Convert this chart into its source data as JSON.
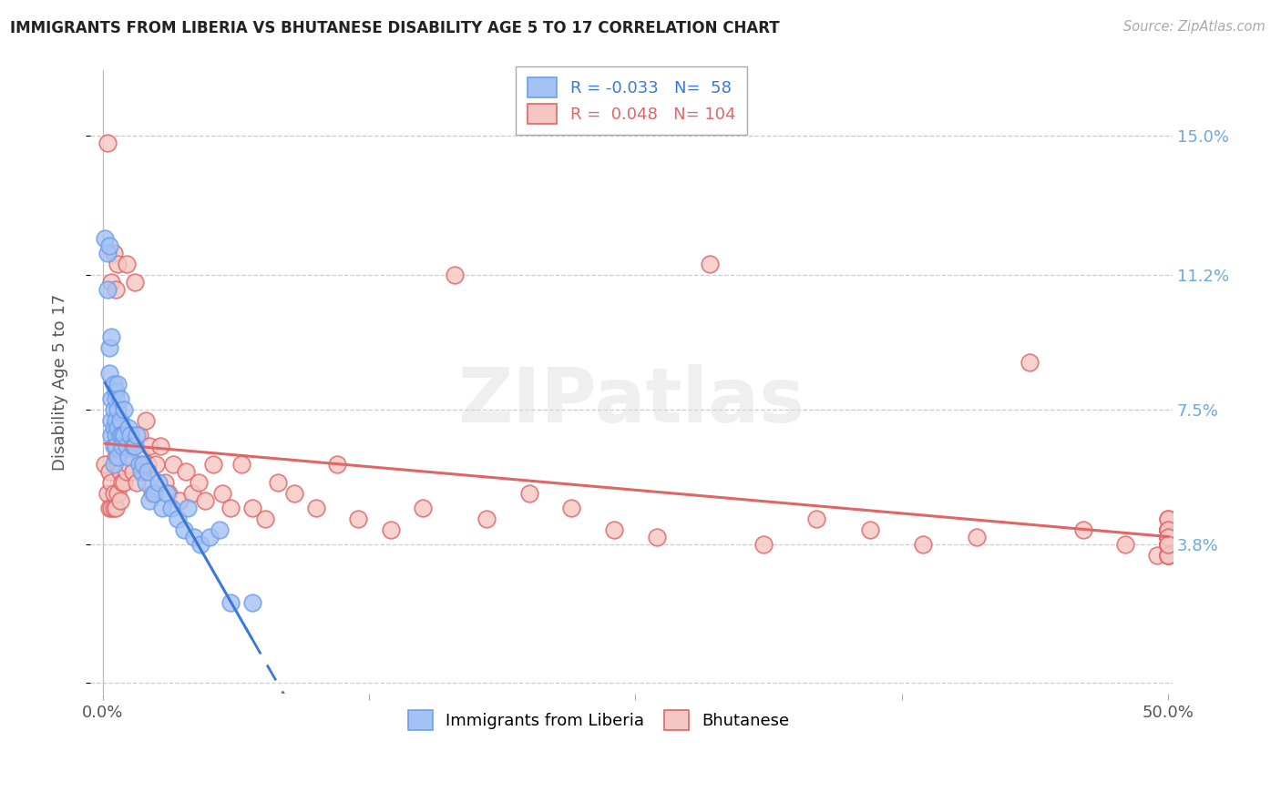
{
  "title": "IMMIGRANTS FROM LIBERIA VS BHUTANESE DISABILITY AGE 5 TO 17 CORRELATION CHART",
  "source": "Source: ZipAtlas.com",
  "ylabel": "Disability Age 5 to 17",
  "xlim": [
    -0.006,
    0.502
  ],
  "ylim": [
    -0.003,
    0.168
  ],
  "ytick_vals": [
    0.0,
    0.038,
    0.075,
    0.112,
    0.15
  ],
  "ytick_labels": [
    "",
    "3.8%",
    "7.5%",
    "11.2%",
    "15.0%"
  ],
  "xtick_vals": [
    0.0,
    0.125,
    0.25,
    0.375,
    0.5
  ],
  "xtick_labels": [
    "0.0%",
    "",
    "",
    "",
    "50.0%"
  ],
  "liberia_R": -0.033,
  "liberia_N": 58,
  "bhutanese_R": 0.048,
  "bhutanese_N": 104,
  "liberia_color": "#a4c2f4",
  "bhutanese_color": "#f4c7c3",
  "liberia_edge_color": "#6d9eeb",
  "bhutanese_edge_color": "#e06666",
  "liberia_line_color": "#3c78d8",
  "bhutanese_line_color": "#e06666",
  "watermark": "ZIPatlas",
  "bg_color": "#ffffff",
  "grid_color": "#cccccc",
  "right_axis_color": "#6fa8dc",
  "liberia_x": [
    0.001,
    0.002,
    0.002,
    0.003,
    0.003,
    0.003,
    0.004,
    0.004,
    0.004,
    0.004,
    0.005,
    0.005,
    0.005,
    0.005,
    0.005,
    0.006,
    0.006,
    0.006,
    0.006,
    0.006,
    0.007,
    0.007,
    0.007,
    0.007,
    0.008,
    0.008,
    0.008,
    0.009,
    0.009,
    0.01,
    0.01,
    0.011,
    0.012,
    0.012,
    0.013,
    0.014,
    0.015,
    0.016,
    0.017,
    0.018,
    0.019,
    0.02,
    0.021,
    0.022,
    0.024,
    0.026,
    0.028,
    0.03,
    0.032,
    0.035,
    0.038,
    0.04,
    0.043,
    0.046,
    0.05,
    0.055,
    0.06,
    0.07
  ],
  "liberia_y": [
    0.122,
    0.118,
    0.108,
    0.092,
    0.085,
    0.12,
    0.078,
    0.072,
    0.068,
    0.095,
    0.075,
    0.07,
    0.065,
    0.082,
    0.06,
    0.08,
    0.072,
    0.068,
    0.078,
    0.065,
    0.082,
    0.075,
    0.07,
    0.062,
    0.072,
    0.068,
    0.078,
    0.068,
    0.065,
    0.075,
    0.068,
    0.065,
    0.07,
    0.062,
    0.068,
    0.065,
    0.065,
    0.068,
    0.06,
    0.058,
    0.06,
    0.055,
    0.058,
    0.05,
    0.052,
    0.055,
    0.048,
    0.052,
    0.048,
    0.045,
    0.042,
    0.048,
    0.04,
    0.038,
    0.04,
    0.042,
    0.022,
    0.022
  ],
  "bhutanese_x": [
    0.001,
    0.002,
    0.002,
    0.003,
    0.003,
    0.004,
    0.004,
    0.004,
    0.005,
    0.005,
    0.005,
    0.006,
    0.006,
    0.006,
    0.007,
    0.007,
    0.007,
    0.008,
    0.008,
    0.008,
    0.009,
    0.009,
    0.01,
    0.01,
    0.011,
    0.011,
    0.012,
    0.013,
    0.014,
    0.015,
    0.016,
    0.017,
    0.018,
    0.019,
    0.02,
    0.021,
    0.022,
    0.023,
    0.025,
    0.027,
    0.029,
    0.031,
    0.033,
    0.036,
    0.039,
    0.042,
    0.045,
    0.048,
    0.052,
    0.056,
    0.06,
    0.065,
    0.07,
    0.076,
    0.082,
    0.09,
    0.1,
    0.11,
    0.12,
    0.135,
    0.15,
    0.165,
    0.18,
    0.2,
    0.22,
    0.24,
    0.26,
    0.285,
    0.31,
    0.335,
    0.36,
    0.385,
    0.41,
    0.435,
    0.46,
    0.48,
    0.495,
    0.5,
    0.5,
    0.5,
    0.5,
    0.5,
    0.5,
    0.5,
    0.5,
    0.5,
    0.5,
    0.5,
    0.5,
    0.5,
    0.5,
    0.5,
    0.5,
    0.5,
    0.5,
    0.5,
    0.5,
    0.5,
    0.5,
    0.5,
    0.5,
    0.5,
    0.5,
    0.5
  ],
  "bhutanese_y": [
    0.06,
    0.148,
    0.052,
    0.048,
    0.058,
    0.11,
    0.055,
    0.048,
    0.118,
    0.052,
    0.048,
    0.108,
    0.062,
    0.048,
    0.115,
    0.06,
    0.052,
    0.072,
    0.058,
    0.05,
    0.065,
    0.055,
    0.065,
    0.055,
    0.115,
    0.058,
    0.06,
    0.068,
    0.058,
    0.11,
    0.055,
    0.068,
    0.062,
    0.058,
    0.072,
    0.06,
    0.065,
    0.052,
    0.06,
    0.065,
    0.055,
    0.052,
    0.06,
    0.05,
    0.058,
    0.052,
    0.055,
    0.05,
    0.06,
    0.052,
    0.048,
    0.06,
    0.048,
    0.045,
    0.055,
    0.052,
    0.048,
    0.06,
    0.045,
    0.042,
    0.048,
    0.112,
    0.045,
    0.052,
    0.048,
    0.042,
    0.04,
    0.115,
    0.038,
    0.045,
    0.042,
    0.038,
    0.04,
    0.088,
    0.042,
    0.038,
    0.035,
    0.04,
    0.042,
    0.038,
    0.035,
    0.04,
    0.042,
    0.038,
    0.045,
    0.042,
    0.038,
    0.04,
    0.042,
    0.035,
    0.038,
    0.04,
    0.042,
    0.038,
    0.035,
    0.04,
    0.042,
    0.038,
    0.045,
    0.042,
    0.038,
    0.04,
    0.035,
    0.038
  ]
}
